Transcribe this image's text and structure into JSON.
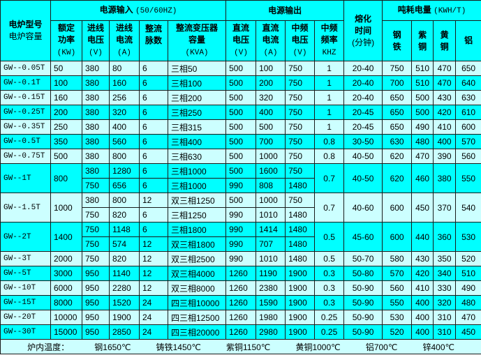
{
  "header": {
    "model_line1": "电炉型号",
    "model_line2": "电炉容量",
    "input_group": "电源输入",
    "input_group_unit": "(50/60HZ)",
    "output_group": "电源输出",
    "melt_time": [
      "熔化",
      "时间",
      "(分钟)"
    ],
    "consumption_group": "吨耗电量",
    "consumption_unit": "(KWH/T)",
    "columns": {
      "power": [
        "额定",
        "功率",
        "(KW)"
      ],
      "in_voltage": [
        "进线",
        "电压",
        "(V)"
      ],
      "in_current": [
        "进线",
        "电流",
        "(A)"
      ],
      "pulses": [
        "整流",
        "脉数"
      ],
      "transformer": [
        "整流变压器",
        "容量",
        "(KVA)"
      ],
      "dc_voltage": [
        "直流",
        "电压",
        "(V)"
      ],
      "dc_current": [
        "直流",
        "电流",
        "(A)"
      ],
      "mf_voltage": [
        "中频",
        "电压",
        "(V)"
      ],
      "mf_freq": [
        "中频",
        "频率",
        "KHZ"
      ],
      "steel": [
        "钢",
        "铁"
      ],
      "copper": [
        "紫",
        "铜"
      ],
      "brass": [
        "黄",
        "铜"
      ],
      "aluminum": "铝"
    }
  },
  "colors": {
    "light": "#ccffff",
    "cyan": "#00ffff"
  },
  "rows": [
    {
      "model": "GW--0.05T",
      "power": "50",
      "subs": [
        [
          "380",
          "80",
          "6",
          "三相50",
          "500",
          "100",
          "750"
        ]
      ],
      "freq": "1",
      "time": "20-40",
      "cons": [
        "750",
        "510",
        "470",
        "650"
      ]
    },
    {
      "model": "GW--0.1T",
      "power": "100",
      "subs": [
        [
          "380",
          "160",
          "6",
          "三相100",
          "500",
          "200",
          "750"
        ]
      ],
      "freq": "1",
      "time": "20-40",
      "cons": [
        "700",
        "510",
        "470",
        "640"
      ]
    },
    {
      "model": "GW--0.15T",
      "power": "160",
      "subs": [
        [
          "380",
          "256",
          "6",
          "三相200",
          "500",
          "320",
          "750"
        ]
      ],
      "freq": "1",
      "time": "20-40",
      "cons": [
        "650",
        "500",
        "430",
        "630"
      ]
    },
    {
      "model": "GW--0.25T",
      "power": "200",
      "subs": [
        [
          "380",
          "320",
          "6",
          "三相250",
          "500",
          "400",
          "750"
        ]
      ],
      "freq": "1",
      "time": "20-45",
      "cons": [
        "650",
        "500",
        "420",
        "610"
      ]
    },
    {
      "model": "GW--0.35T",
      "power": "250",
      "subs": [
        [
          "380",
          "400",
          "6",
          "三相315",
          "500",
          "500",
          "750"
        ]
      ],
      "freq": "1",
      "time": "20-45",
      "cons": [
        "650",
        "490",
        "410",
        "600"
      ]
    },
    {
      "model": "GW--0.5T",
      "power": "350",
      "subs": [
        [
          "380",
          "560",
          "6",
          "三相400",
          "500",
          "700",
          "750"
        ]
      ],
      "freq": "0.8",
      "time": "30-50",
      "cons": [
        "630",
        "480",
        "400",
        "570"
      ]
    },
    {
      "model": "GW--0.75T",
      "power": "500",
      "subs": [
        [
          "380",
          "800",
          "6",
          "三相630",
          "500",
          "1000",
          "750"
        ]
      ],
      "freq": "0.8",
      "time": "40-50",
      "cons": [
        "620",
        "470",
        "390",
        "560"
      ]
    },
    {
      "model": "GW--1T",
      "power": "800",
      "subs": [
        [
          "380",
          "1280",
          "6",
          "三相1000",
          "500",
          "1600",
          "750"
        ],
        [
          "750",
          "656",
          "6",
          "三相1000",
          "990",
          "808",
          "1480"
        ]
      ],
      "freq": "0.7",
      "time": "40-50",
      "cons": [
        "620",
        "460",
        "380",
        "550"
      ]
    },
    {
      "model": "GW--1.5T",
      "power": "1000",
      "subs": [
        [
          "380",
          "800",
          "12",
          "双三相1250",
          "500",
          "1000",
          "750"
        ],
        [
          "750",
          "820",
          "6",
          "三相1250",
          "990",
          "1010",
          "1480"
        ]
      ],
      "freq": "0.7",
      "time": "40-60",
      "cons": [
        "600",
        "450",
        "370",
        "540"
      ]
    },
    {
      "model": "GW--2T",
      "power": "1400",
      "subs": [
        [
          "750",
          "1148",
          "6",
          "三相1800",
          "990",
          "1414",
          "1480"
        ],
        [
          "750",
          "574",
          "12",
          "双三相1800",
          "990",
          "707",
          "1480"
        ]
      ],
      "freq": "0.5",
      "time": "45-60",
      "cons": [
        "600",
        "440",
        "360",
        "530"
      ]
    },
    {
      "model": "GW--3T",
      "power": "2000",
      "subs": [
        [
          "750",
          "820",
          "12",
          "双三相2500",
          "990",
          "1010",
          "1480"
        ]
      ],
      "freq": "0.5",
      "time": "50-70",
      "cons": [
        "580",
        "430",
        "350",
        "520"
      ]
    },
    {
      "model": "GW--5T",
      "power": "3000",
      "subs": [
        [
          "950",
          "1140",
          "12",
          "双三相4000",
          "1260",
          "1190",
          "1900"
        ]
      ],
      "freq": "0.3",
      "time": "50-80",
      "cons": [
        "570",
        "420",
        "340",
        "510"
      ]
    },
    {
      "model": "GW--10T",
      "power": "6000",
      "subs": [
        [
          "950",
          "2280",
          "12",
          "双三相8000",
          "1260",
          "2380",
          "1900"
        ]
      ],
      "freq": "0.3",
      "time": "50-90",
      "cons": [
        "560",
        "410",
        "330",
        "490"
      ]
    },
    {
      "model": "GW--15T",
      "power": "8000",
      "subs": [
        [
          "950",
          "1520",
          "24",
          "四三相10000",
          "1260",
          "1590",
          "1900"
        ]
      ],
      "freq": "0.3",
      "time": "50-90",
      "cons": [
        "550",
        "400",
        "320",
        "480"
      ]
    },
    {
      "model": "GW--20T",
      "power": "10000",
      "subs": [
        [
          "950",
          "1900",
          "24",
          "四三相12500",
          "1260",
          "1980",
          "1900"
        ]
      ],
      "freq": "0.25",
      "time": "50-90",
      "cons": [
        "530",
        "400",
        "310",
        "470"
      ]
    },
    {
      "model": "GW--30T",
      "power": "15000",
      "subs": [
        [
          "950",
          "2850",
          "24",
          "四三相20000",
          "1260",
          "2980",
          "1900"
        ]
      ],
      "freq": "0.25",
      "time": "50-90",
      "cons": [
        "520",
        "400",
        "310",
        "450"
      ]
    }
  ],
  "footer": {
    "label": "炉内温度：",
    "items": [
      "钢1650℃",
      "铸铁1450℃",
      "紫铜1150℃",
      "黄铜1000℃",
      "铝700℃",
      "锌400℃"
    ]
  }
}
